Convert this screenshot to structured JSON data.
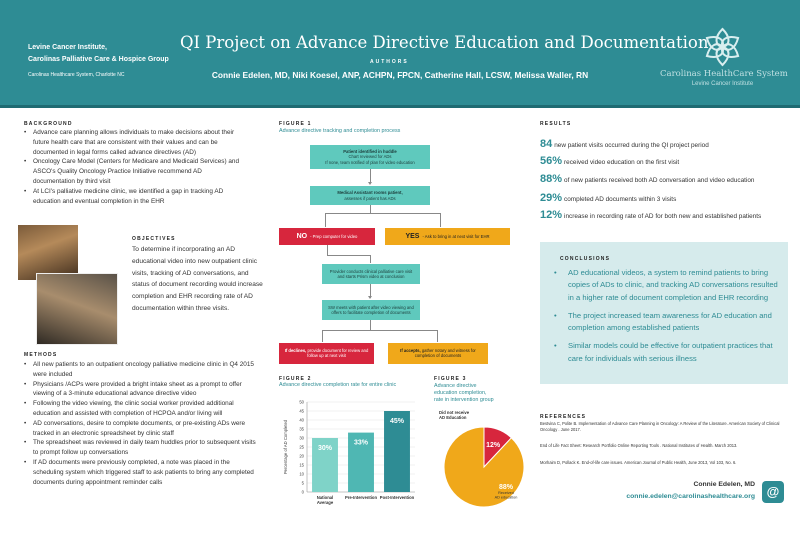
{
  "header": {
    "institution_line1": "Levine Cancer Institute,",
    "institution_line2": "Carolinas Palliative Care & Hospice Group",
    "institution_line3": "Carolinas Healthcare System, Charlotte NC",
    "title": "QI Project on Advance Directive Education and Documentation",
    "authors_label": "AUTHORS",
    "authors": "Connie Edelen, MD, Niki Koesel, ANP, ACHPN, FPCN, Catherine Hall, LCSW, Melissa Waller, RN",
    "logo_line1": "Carolinas HealthCare System",
    "logo_line2": "Levine Cancer Institute"
  },
  "background": {
    "heading": "BACKGROUND",
    "items": [
      "Advance care planning allows individuals to make decisions about their future health care that are consistent with their values and can be documented in legal forms called advance directives (AD)",
      "Oncology Care Model (Centers for Medicare and Medicaid Services) and ASCO's Quality Oncology Practice Initiative recommend AD documentation by third visit",
      "At LCI's palliative medicine clinic, we identified a gap in tracking AD education and eventual completion in the EHR"
    ]
  },
  "objectives": {
    "heading": "OBJECTIVES",
    "text": "To determine if incorporating an AD educational video into new outpatient clinic visits, tracking of AD conversations, and status of document recording would increase completion and EHR recording rate of AD documentation within three visits."
  },
  "methods": {
    "heading": "METHODS",
    "items": [
      "All new patients to an outpatient oncology palliative medicine clinic in Q4 2015 were included",
      "Physicians /ACPs were provided a bright intake sheet as a prompt to offer viewing of a 3-minute educational advance directive video",
      "Following the video viewing, the clinic social worker provided additional education and assisted with completion of HCPOA and/or living will",
      "AD conversations, desire to complete documents, or pre-existing ADs were tracked in an electronic spreadsheet by clinic staff",
      "The spreadsheet was reviewed in daily team huddles prior to subsequent visits to prompt follow up conversations",
      "If AD documents were previously completed, a note was placed in the scheduling system which triggered staff to ask patients to bring any completed documents during appointment reminder calls"
    ]
  },
  "figure1": {
    "label": "FIGURE 1",
    "caption": "Advance directive tracking and completion process",
    "box1_title": "Patient identified in huddle",
    "box1_line1": "Chart reviewed for ADs",
    "box1_line2": "If none, team notified of plan for video education",
    "box2_title": "Medical Assistant rooms patient,",
    "box2_line1": "assesses if patient has ADs",
    "no_label": "NO",
    "no_text": "- Prep computer for video",
    "yes_label": "YES",
    "yes_text": "- Ask to bring in at next visit for EHR",
    "box3_line1": "Provider conducts clinical palliative care visit",
    "box3_line2": "and starts Prism video at conclusion",
    "box4_line1": "SW meets with patient after video viewing and",
    "box4_line2": "offers to facilitate completion of documents",
    "declines_label": "If declines,",
    "declines_text": "provide document for review and follow up at next visit",
    "accepts_label": "If accepts,",
    "accepts_text": "gather notary and witness for completion of documents"
  },
  "figure2": {
    "label": "FIGURE 2",
    "caption": "Advance directive completion rate for entire clinic"
  },
  "figure3": {
    "label": "FIGURE 3",
    "caption_line1": "Advance directive",
    "caption_line2": "education completion,",
    "caption_line3": "rate in intervention group"
  },
  "chart_data": [
    {
      "type": "bar",
      "categories": [
        "National Average",
        "Pre-Intervention",
        "Post-Intervention"
      ],
      "values": [
        30,
        33,
        45
      ],
      "value_labels": [
        "30%",
        "33%",
        "45%"
      ],
      "ylabel": "Percentage of AD Completed",
      "yticks": [
        0,
        5,
        10,
        15,
        20,
        25,
        30,
        35,
        40,
        45,
        50
      ],
      "ylim": [
        0,
        50
      ],
      "colors": [
        "#7fd3c8",
        "#4fb7b3",
        "#2e8c94"
      ]
    },
    {
      "type": "pie",
      "labels": [
        "Did not receive AD Education",
        "Received AD education"
      ],
      "values": [
        12,
        88
      ],
      "value_labels": [
        "12%",
        "88%"
      ],
      "colors": [
        "#d7263d",
        "#f0a81a"
      ]
    }
  ],
  "results": {
    "heading": "RESULTS",
    "items": [
      {
        "pct": "84",
        "text": "new patient visits occurred during the QI project period"
      },
      {
        "pct": "56%",
        "text": "received video education on the first visit"
      },
      {
        "pct": "88%",
        "text": "of new patients received both AD conversation and video education"
      },
      {
        "pct": "29%",
        "text": "completed AD documents within 3 visits"
      },
      {
        "pct": "12%",
        "text": "increase in recording rate of AD for both new and established patients"
      }
    ]
  },
  "conclusions": {
    "heading": "CONCLUSIONS",
    "items": [
      "AD educational videos, a system to remind patients to bring copies of ADs to clinic, and tracking AD conversations resulted in a higher rate of document completion and EHR recording",
      "The project increased team awareness for AD education and completion among established patients",
      "Similar models could be effective for outpatient practices that care for individuals with serious illness"
    ]
  },
  "references": {
    "heading": "REFERENCES",
    "items": [
      "Bestvina C, Polite B. Implementation of Advance Care Planning in Oncology: A Review of the Literature. American Society of Clinical Oncology . June 2017.",
      "End of Life Fact Sheet: Research Portfolio Online Reporting Tools . National Institutes of Health. March 2013.",
      "Morhaim D, Pollack K. End-of-life care issues. American Journal of Public Health, June 2013, Vol 103, No. 6."
    ]
  },
  "contact": {
    "name": "Connie Edelen, MD",
    "email": "connie.edelen@carolinashealthcare.org",
    "icon": "@"
  }
}
